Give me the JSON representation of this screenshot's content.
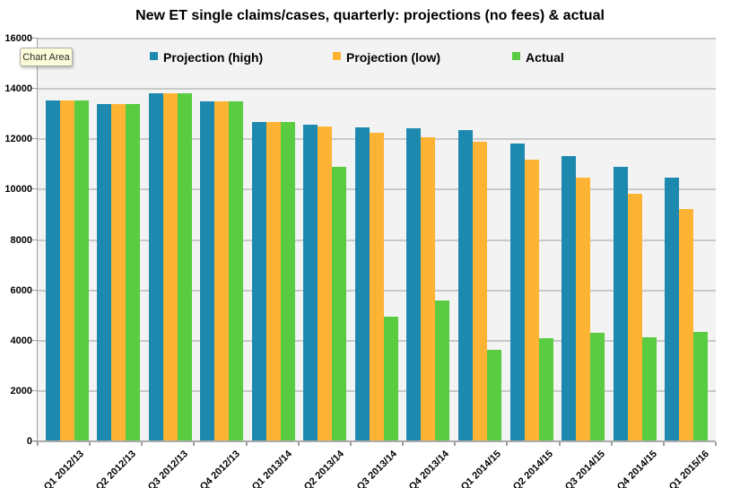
{
  "title": "New ET single claims/cases, quarterly: projections (no fees) & actual",
  "tooltip": {
    "text": "Chart Area"
  },
  "chart_data": {
    "type": "bar",
    "title": "New ET single claims/cases, quarterly: projections (no fees) & actual",
    "categories": [
      "Q1 2012/13",
      "Q2 2012/13",
      "Q3 2012/13",
      "Q4 2012/13",
      "Q1 2013/14",
      "Q2 2013/14",
      "Q3 2013/14",
      "Q4 2013/14",
      "Q1 2014/15",
      "Q2 2014/15",
      "Q3 2014/15",
      "Q4 2014/15",
      "Q1 2015/16"
    ],
    "series": [
      {
        "name": "Projection (high)",
        "color": "#1E89AE",
        "values": [
          13550,
          13390,
          13830,
          13490,
          12700,
          12590,
          12490,
          12420,
          12360,
          11840,
          11350,
          10900,
          10490
        ]
      },
      {
        "name": "Projection (low)",
        "color": "#FDB435",
        "values": [
          13550,
          13390,
          13830,
          13490,
          12700,
          12500,
          12260,
          12090,
          11900,
          11180,
          10480,
          9830,
          9230
        ]
      },
      {
        "name": "Actual",
        "color": "#59CC41",
        "values": [
          13550,
          13390,
          13830,
          13490,
          12700,
          10890,
          4960,
          5580,
          3650,
          4110,
          4300,
          4120,
          4360
        ]
      }
    ],
    "xlabel": "",
    "ylabel": "",
    "ylim": [
      0,
      16000
    ],
    "ytick_step": 2000,
    "yticks": [
      0,
      2000,
      4000,
      6000,
      8000,
      10000,
      12000,
      14000,
      16000
    ],
    "grid": true,
    "legend_position": "top-inside",
    "plot_background": "#F3F3F3",
    "gridline_color": "#C9C9C9"
  }
}
